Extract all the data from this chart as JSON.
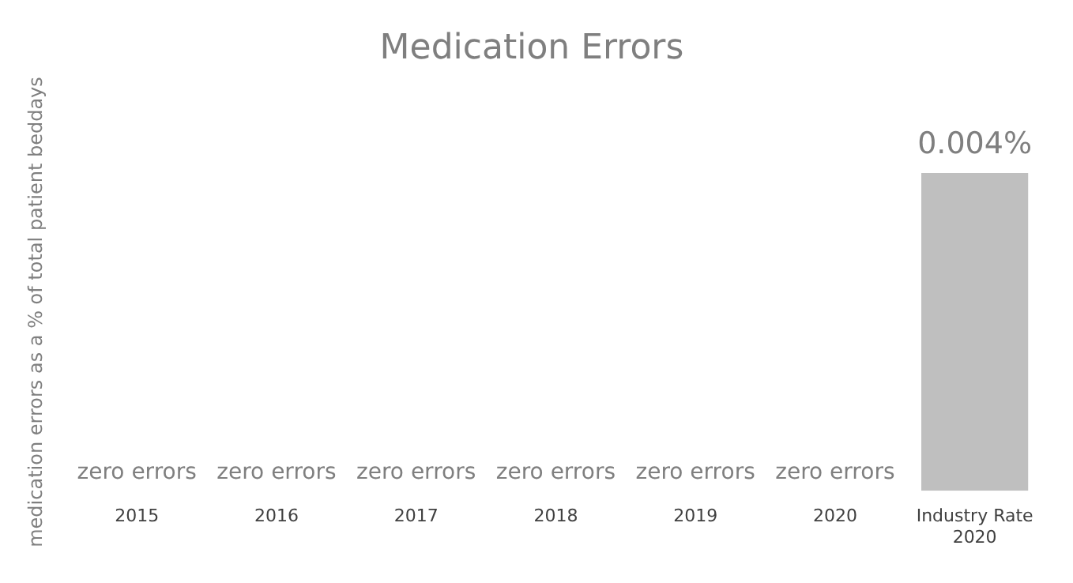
{
  "chart_data": {
    "type": "bar",
    "title": "Medication Errors",
    "ylabel": "medication errors as a % of total patient beddays",
    "categories": [
      "2015",
      "2016",
      "2017",
      "2018",
      "2019",
      "2020",
      "Industry Rate 2020"
    ],
    "values": [
      0,
      0,
      0,
      0,
      0,
      0,
      0.004
    ],
    "value_labels": [
      "zero errors",
      "zero errors",
      "zero errors",
      "zero errors",
      "zero errors",
      "zero errors",
      "0.004%"
    ],
    "color": "#bfbfbf",
    "grid": false,
    "legend": false
  }
}
